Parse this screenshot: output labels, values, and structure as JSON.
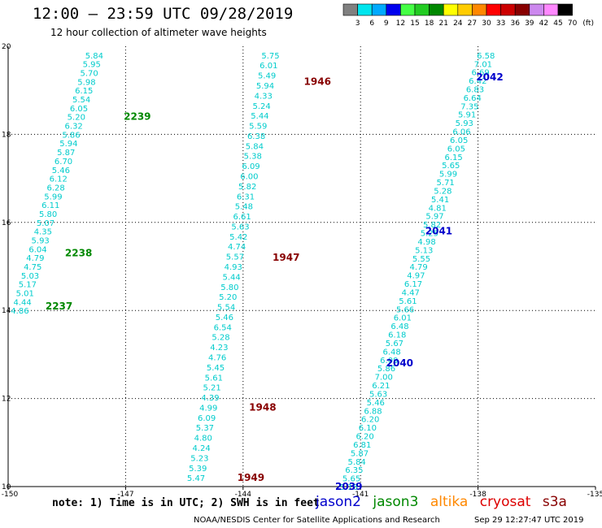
{
  "header": {
    "title": "12:00 – 23:59 UTC 09/28/2019",
    "subtitle": "12 hour collection of altimeter wave heights"
  },
  "colorbar": {
    "labels": [
      "3",
      "6",
      "9",
      "12",
      "15",
      "18",
      "21",
      "24",
      "27",
      "30",
      "33",
      "36",
      "39",
      "42",
      "45",
      "70",
      "(ft)"
    ],
    "colors": [
      "#808080",
      "#00e5ee",
      "#00aaff",
      "#0000ee",
      "#44ff44",
      "#22cc22",
      "#008800",
      "#ffff00",
      "#ffcc00",
      "#ff8800",
      "#ff0000",
      "#cc0000",
      "#880000",
      "#cc88ee",
      "#ff88ff",
      "#000000"
    ]
  },
  "footer": {
    "note": "note: 1) Time is in UTC; 2) SWH is in feet",
    "credit": "NOAA/NESDIS Center for Satellite Applications and Research",
    "timestamp": "Sep 29 12:27:47 UTC 2019"
  },
  "satellites": [
    {
      "name": "jason2",
      "color": "#0000cc"
    },
    {
      "name": "jason3",
      "color": "#008800"
    },
    {
      "name": "altika",
      "color": "#ff8800"
    },
    {
      "name": "cryosat",
      "color": "#dd0000"
    },
    {
      "name": "s3a",
      "color": "#880000"
    }
  ],
  "chart_data": {
    "type": "scatter",
    "xlabel": "",
    "ylabel": "",
    "xlim": [
      -150,
      -135
    ],
    "ylim": [
      10,
      20
    ],
    "xticks": [
      "-150",
      "-147",
      "-144",
      "-141",
      "-138",
      "-135"
    ],
    "yticks": [
      "10",
      "12",
      "14",
      "16",
      "18",
      "20"
    ],
    "value_color": "#00cccc",
    "tracks": [
      {
        "satellite": "jason3",
        "start": [
          -147.8,
          19.8
        ],
        "end": [
          -149.7,
          14.0
        ],
        "values": [
          "5.84",
          "5.95",
          "5.70",
          "5.98",
          "6.15",
          "5.54",
          "6.05",
          "5.20",
          "6.32",
          "5.86",
          "5.94",
          "5.87",
          "6.70",
          "5.46",
          "6.12",
          "6.28",
          "5.99",
          "6.11",
          "5.80",
          "5.07",
          "4.35",
          "5.93",
          "6.04",
          "4.79",
          "4.75",
          "5.03",
          "5.17",
          "5.01",
          "4.44",
          "4.86"
        ],
        "labels": [
          {
            "text": "2239",
            "x": -146.7,
            "y": 18.4
          },
          {
            "text": "2238",
            "x": -148.2,
            "y": 15.3
          },
          {
            "text": "2237",
            "x": -148.7,
            "y": 14.1
          }
        ]
      },
      {
        "satellite": "s3a",
        "start": [
          -143.3,
          19.8
        ],
        "end": [
          -145.2,
          10.2
        ],
        "values": [
          "5.75",
          "6.01",
          "5.49",
          "5.94",
          "4.33",
          "5.24",
          "5.44",
          "5.59",
          "6.38",
          "5.84",
          "5.38",
          "6.09",
          "6.00",
          "5.82",
          "6.31",
          "5.48",
          "6.61",
          "5.63",
          "5.42",
          "4.74",
          "5.57",
          "4.93",
          "5.44",
          "5.80",
          "5.20",
          "5.54",
          "5.46",
          "6.54",
          "5.28",
          "4.23",
          "4.76",
          "5.45",
          "5.61",
          "5.21",
          "4.39",
          "4.99",
          "6.09",
          "5.37",
          "4.80",
          "4.24",
          "5.23",
          "5.39",
          "5.47"
        ],
        "labels": [
          {
            "text": "1946",
            "x": -142.1,
            "y": 19.2
          },
          {
            "text": "1947",
            "x": -142.9,
            "y": 15.2
          },
          {
            "text": "1948",
            "x": -143.5,
            "y": 11.8
          },
          {
            "text": "1949",
            "x": -143.8,
            "y": 10.2
          }
        ]
      },
      {
        "satellite": "jason2",
        "start": [
          -137.8,
          19.8
        ],
        "end": [
          -141.3,
          10.0
        ],
        "values": [
          "6.58",
          "7.01",
          "6.69",
          "6.42",
          "6.83",
          "6.64",
          "7.35",
          "5.91",
          "5.93",
          "6.06",
          "6.05",
          "6.05",
          "6.15",
          "5.65",
          "5.99",
          "5.71",
          "5.28",
          "5.41",
          "4.81",
          "5.97",
          "5.82",
          "5.25",
          "4.98",
          "5.13",
          "5.55",
          "4.79",
          "4.97",
          "6.17",
          "4.47",
          "5.61",
          "5.66",
          "6.01",
          "6.48",
          "6.18",
          "5.67",
          "6.48",
          "6.09",
          "5.86",
          "7.00",
          "6.21",
          "5.63",
          "5.46",
          "6.88",
          "6.20",
          "6.10",
          "6.20",
          "6.81",
          "5.87",
          "5.84",
          "6.35",
          "5.65",
          "5.16"
        ],
        "labels": [
          {
            "text": "2042",
            "x": -137.7,
            "y": 19.3
          },
          {
            "text": "2041",
            "x": -139.0,
            "y": 15.8
          },
          {
            "text": "2040",
            "x": -140.0,
            "y": 12.8
          },
          {
            "text": "2039",
            "x": -141.3,
            "y": 10.0
          }
        ]
      }
    ]
  }
}
